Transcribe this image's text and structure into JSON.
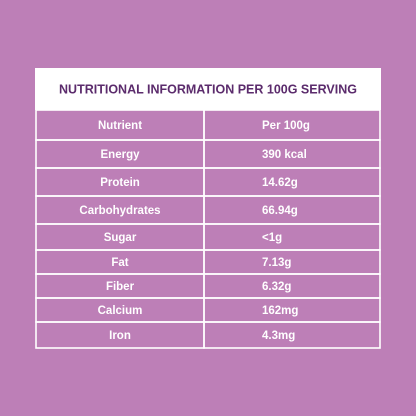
{
  "header": {
    "title": "NUTRITIONAL INFORMATION  PER 100G SERVING"
  },
  "table": {
    "columns": [
      "Nutrient",
      "Per 100g"
    ],
    "rows": [
      [
        "Energy",
        "390 kcal"
      ],
      [
        "Protein",
        "14.62g"
      ],
      [
        "Carbohydrates",
        "66.94g"
      ],
      [
        "Sugar",
        "<1g"
      ],
      [
        "Fat",
        "7.13g"
      ],
      [
        "Fiber",
        "6.32g"
      ],
      [
        "Calcium",
        "162mg"
      ],
      [
        "Iron",
        "4.3mg"
      ]
    ]
  }
}
